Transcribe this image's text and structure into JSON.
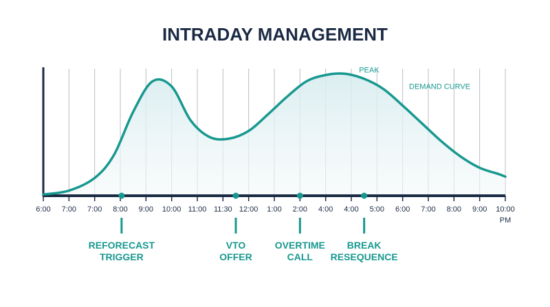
{
  "colors": {
    "navy": "#1b2a44",
    "teal": "#17988f",
    "fill": "#e6f3f5",
    "grid": "#b7bcc4"
  },
  "chart_data": {
    "type": "area",
    "title": "INTRADAY MANAGEMENT",
    "xlabel": "",
    "ylabel": "",
    "grid": true,
    "tick_labels": [
      "6:00",
      "7:00",
      "7:00",
      "8:00",
      "9:00",
      "10:00",
      "11:00",
      "11:30",
      "12:00",
      "1:00",
      "2:00",
      "4:00",
      "4:00",
      "5:00",
      "6:00",
      "7:00",
      "8:00",
      "9:00",
      "10:00"
    ],
    "last_tick_suffix": "PM",
    "ylim": [
      0,
      100
    ],
    "series": [
      {
        "name": "DEMAND CURVE",
        "x": [
          0,
          1,
          2,
          2.75,
          3.5,
          4.25,
          5,
          5.75,
          6.5,
          7.25,
          8,
          8.75,
          9.5,
          10.25,
          11,
          11.75,
          12.5,
          13.25,
          14,
          14.75,
          15.5,
          16.25,
          17,
          17.75,
          18
        ],
        "values": [
          1,
          4,
          14,
          32,
          66,
          90,
          86,
          59,
          46,
          45,
          51,
          64,
          78,
          90,
          95,
          96,
          92,
          84,
          71,
          57,
          43,
          31,
          22,
          17,
          15
        ]
      }
    ],
    "annotations": [
      {
        "lines": [
          "PEAK"
        ],
        "x": 12.3,
        "y": 97
      },
      {
        "lines": [
          "DEMAND CURVE"
        ],
        "x": 14.25,
        "y": 84
      }
    ],
    "markers": [
      {
        "lines": [
          "REFORECAST",
          "TRIGGER"
        ],
        "x": 3.05
      },
      {
        "lines": [
          "VTO",
          "OFFER"
        ],
        "x": 7.5
      },
      {
        "lines": [
          "OVERTIME",
          "CALL"
        ],
        "x": 10
      },
      {
        "lines": [
          "BREAK",
          "RESEQUENCE"
        ],
        "x": 12.5
      }
    ]
  }
}
